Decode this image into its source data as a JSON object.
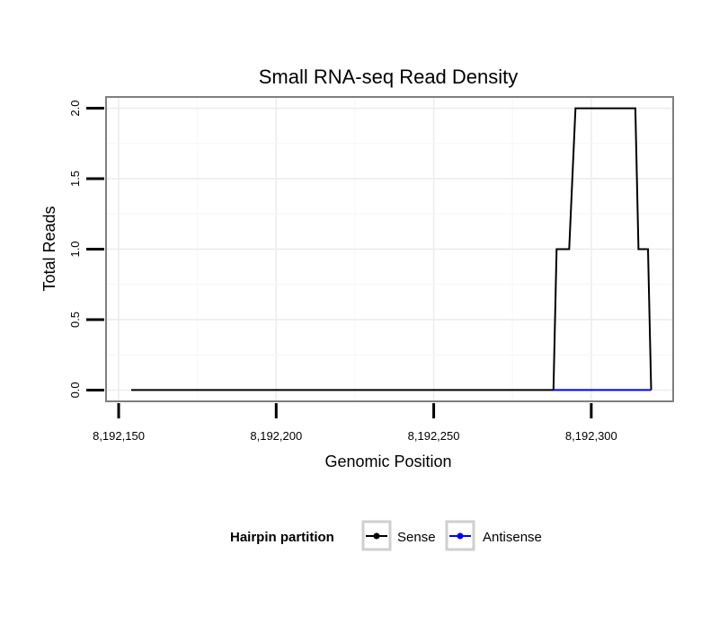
{
  "chart_data": {
    "type": "line",
    "title": "Small RNA-seq Read Density",
    "xlabel": "Genomic Position",
    "ylabel": "Total Reads",
    "xlim": [
      8192146,
      8192326
    ],
    "ylim": [
      -0.08,
      2.08
    ],
    "x_ticks": [
      8192150,
      8192200,
      8192250,
      8192300
    ],
    "x_tick_labels": [
      "8,192,150",
      "8,192,200",
      "8,192,250",
      "8,192,300"
    ],
    "y_ticks": [
      0,
      0.5,
      1,
      1.5,
      2
    ],
    "y_tick_labels": [
      "0.0",
      "0.5",
      "1.0",
      "1.5",
      "2.0"
    ],
    "grid": true,
    "legend": {
      "title": "Hairpin partition",
      "position": "bottom"
    },
    "series": [
      {
        "name": "Sense",
        "color": "#000000",
        "x": [
          8192154,
          8192288,
          8192289,
          8192293,
          8192295,
          8192314,
          8192315,
          8192318,
          8192319
        ],
        "y": [
          0,
          0,
          1,
          1,
          2,
          2,
          1,
          1,
          0
        ]
      },
      {
        "name": "Antisense",
        "color": "#0000ff",
        "x": [
          8192288,
          8192319
        ],
        "y": [
          0,
          0
        ]
      }
    ]
  }
}
